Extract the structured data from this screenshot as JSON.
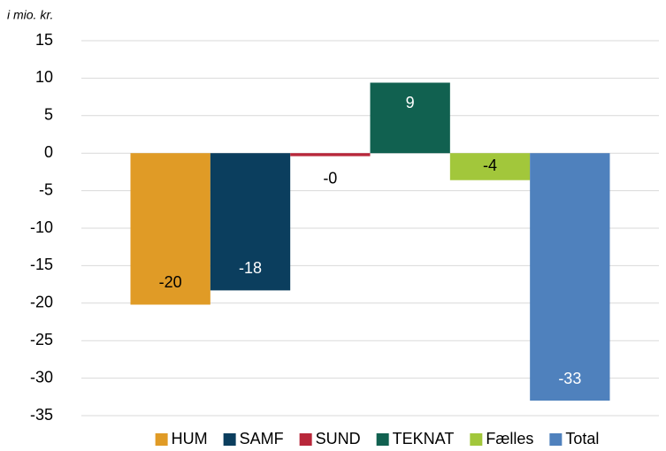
{
  "chart_data": {
    "type": "bar",
    "title": "i mio. kr.",
    "categories": [
      null
    ],
    "series": [
      {
        "name": "HUM",
        "color": "#e09b26",
        "values": [
          -20.2
        ],
        "value_labels": [
          "-20"
        ]
      },
      {
        "name": "SAMF",
        "color": "#0b3e5e",
        "values": [
          -18.3
        ],
        "value_labels": [
          "-18"
        ]
      },
      {
        "name": "SUND",
        "color": "#b8273a",
        "values": [
          -0.4
        ],
        "value_labels": [
          "-0"
        ]
      },
      {
        "name": "TEKNAT",
        "color": "#116150",
        "values": [
          9.4
        ],
        "value_labels": [
          "9"
        ]
      },
      {
        "name": "Fælles",
        "color": "#a2c73b",
        "values": [
          -3.6
        ],
        "value_labels": [
          "-4"
        ]
      },
      {
        "name": "Total",
        "color": "#4f81bd",
        "values": [
          -33.0
        ],
        "value_labels": [
          "-33"
        ]
      }
    ],
    "ylim": [
      -35,
      15
    ],
    "yticks": [
      -35,
      -30,
      -25,
      -20,
      -15,
      -10,
      -5,
      0,
      5,
      10,
      15
    ],
    "grid": true,
    "legend": "bottom"
  }
}
